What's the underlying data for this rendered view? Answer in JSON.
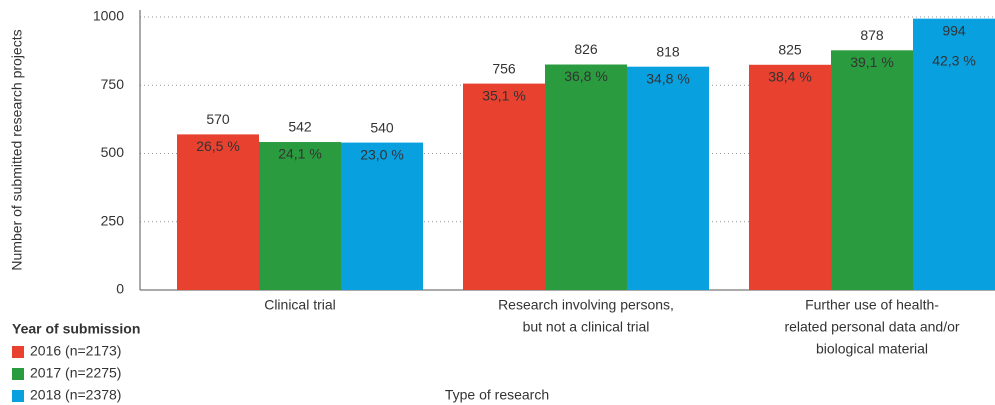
{
  "chart_data": {
    "type": "bar",
    "y_label": "Number of submitted research projects",
    "x_label": "Type of research",
    "legend_title": "Year of submission",
    "categories": [
      [
        "Clinical trial"
      ],
      [
        "Research involving persons,",
        "but not a clinical trial"
      ],
      [
        "Further use of health-",
        "related personal data and/or",
        "biological material"
      ]
    ],
    "series": [
      {
        "name": "2016 (n=2173)",
        "color": "#e8412f",
        "values": [
          570,
          756,
          825
        ],
        "shares": [
          26.5,
          35.1,
          38.4
        ],
        "share_labels": [
          "26,5 %",
          "35,1 %",
          "38,4 %"
        ]
      },
      {
        "name": "2017 (n=2275)",
        "color": "#2a9c3f",
        "values": [
          542,
          826,
          878
        ],
        "shares": [
          24.1,
          36.8,
          39.1
        ],
        "share_labels": [
          "24,1 %",
          "36,8 %",
          "39,1 %"
        ]
      },
      {
        "name": "2018 (n=2378)",
        "color": "#08a0df",
        "values": [
          540,
          818,
          994
        ],
        "shares": [
          23.0,
          34.8,
          42.3
        ],
        "share_labels": [
          "23,0 %",
          "34,8 %",
          "42,3 %"
        ]
      }
    ],
    "ylim": [
      0,
      1000
    ],
    "yticks": [
      0,
      250,
      500,
      750,
      1000
    ],
    "grid": true
  }
}
